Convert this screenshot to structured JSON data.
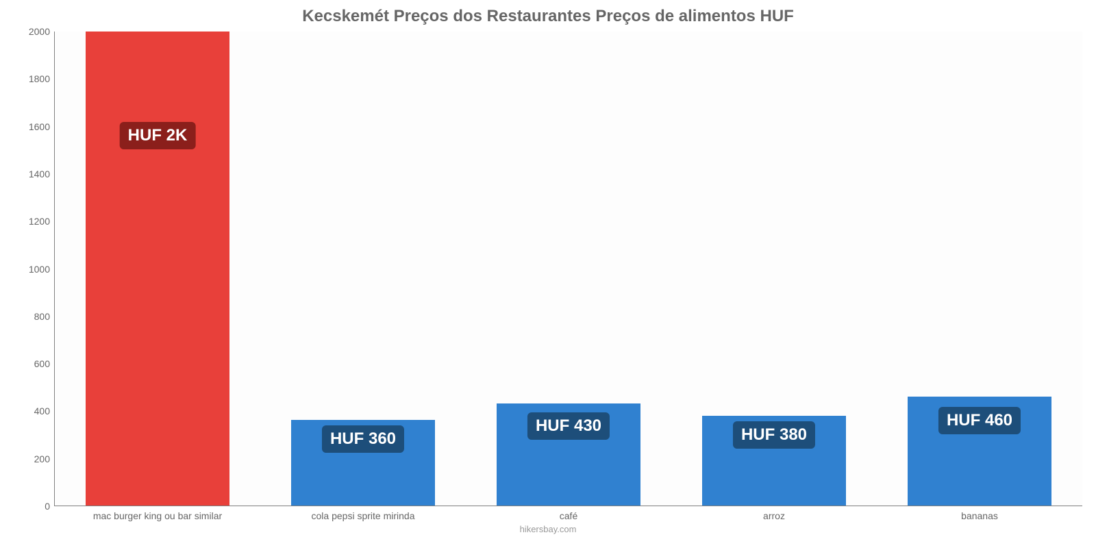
{
  "chart": {
    "type": "bar",
    "title": "Kecskemét Preços dos Restaurantes Preços de alimentos HUF",
    "title_color": "#666666",
    "title_fontsize": 24,
    "background_color": "#fdfdfd",
    "axis_line_color": "#808080",
    "tick_label_color": "#666666",
    "tick_fontsize": 14,
    "ylim": [
      0,
      2000
    ],
    "ytick_step": 200,
    "bar_width_pct": 70,
    "categories": [
      "mac burger king ou bar similar",
      "cola pepsi sprite mirinda",
      "café",
      "arroz",
      "bananas"
    ],
    "values": [
      2000,
      360,
      430,
      380,
      460
    ],
    "value_labels": [
      "HUF 2K",
      "HUF 360",
      "HUF 430",
      "HUF 380",
      "HUF 460"
    ],
    "bar_colors": [
      "#e8403a",
      "#3081d0",
      "#3081d0",
      "#3081d0",
      "#3081d0"
    ],
    "label_bg_colors": [
      "#8b1f1b",
      "#1d4e7a",
      "#1d4e7a",
      "#1d4e7a",
      "#1d4e7a"
    ],
    "label_fontsize": 24,
    "label_text_color": "#ffffff",
    "footer": "hikersbay.com",
    "footer_color": "#999999"
  }
}
